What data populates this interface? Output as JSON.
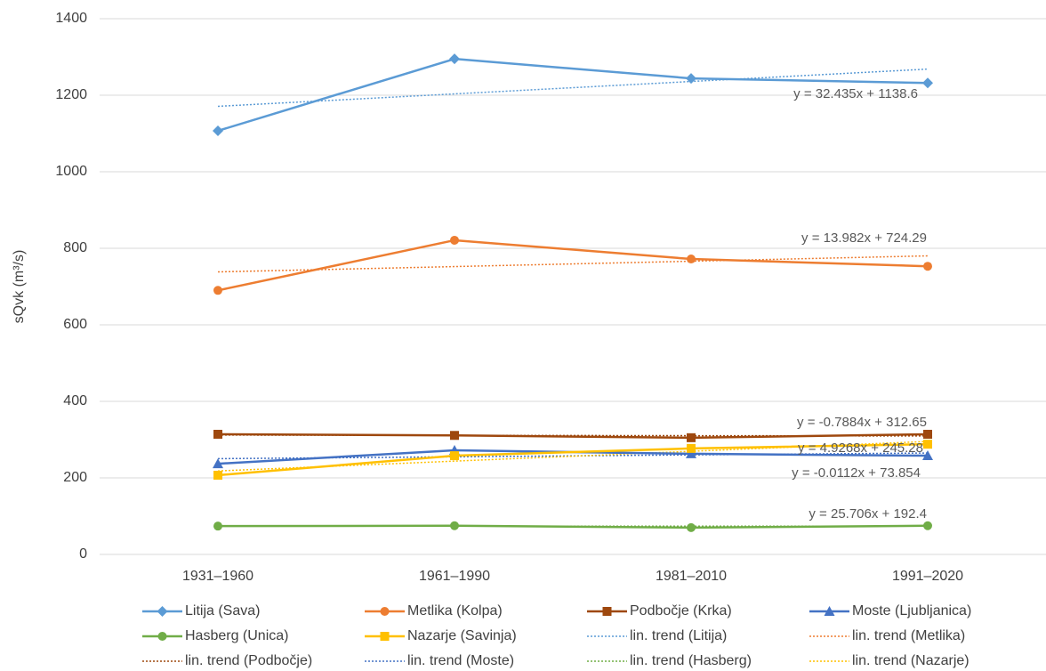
{
  "chart_data": {
    "type": "line",
    "y_label": "sQvk (m³/s)",
    "categories": [
      "1931–1960",
      "1961–1990",
      "1981–2010",
      "1991–2020"
    ],
    "ylim": [
      0,
      1400
    ],
    "yticks": [
      0,
      200,
      400,
      600,
      800,
      1000,
      1200,
      1400
    ],
    "grid": true,
    "series": [
      {
        "name": "Litija (Sava)",
        "color": "#5b9bd5",
        "marker": "diamond",
        "values": [
          1107,
          1295,
          1244,
          1232
        ]
      },
      {
        "name": "Metlika (Kolpa)",
        "color": "#ed7d31",
        "marker": "circle",
        "values": [
          690,
          821,
          772,
          753
        ]
      },
      {
        "name": "Podbočje (Krka)",
        "color": "#9e480e",
        "marker": "square",
        "values": [
          314,
          311,
          305,
          314
        ]
      },
      {
        "name": "Moste (Ljubljanica)",
        "color": "#4472c4",
        "marker": "triangle",
        "values": [
          237,
          272,
          263,
          258
        ]
      },
      {
        "name": "Hasberg (Unica)",
        "color": "#70ad47",
        "marker": "circle",
        "values": [
          74,
          75,
          70,
          75
        ]
      },
      {
        "name": "Nazarje (Savinja)",
        "color": "#ffc000",
        "marker": "square",
        "values": [
          207,
          258,
          277,
          288
        ]
      }
    ],
    "trendlines": [
      {
        "name": "lin. trend (Litija)",
        "color": "#5b9bd5",
        "equation": "y = 32.435x + 1138.6",
        "values": [
          1171.0,
          1203.5,
          1235.9,
          1268.3
        ]
      },
      {
        "name": "lin. trend (Metlika)",
        "color": "#ed7d31",
        "equation": "y = 13.982x + 724.29",
        "values": [
          738.3,
          752.2,
          766.2,
          780.2
        ]
      },
      {
        "name": "lin. trend (Podbočje)",
        "color": "#9e480e",
        "equation": "y = -0.7884x + 312.65",
        "values": [
          311.9,
          311.1,
          310.3,
          309.5
        ]
      },
      {
        "name": "lin. trend (Moste)",
        "color": "#4472c4",
        "equation": "y = 4.9268x + 245.28",
        "values": [
          250.2,
          255.1,
          260.1,
          265.0
        ]
      },
      {
        "name": "lin. trend (Hasberg)",
        "color": "#70ad47",
        "equation": "y = -0.0112x + 73.854",
        "values": [
          73.8,
          73.8,
          73.8,
          73.8
        ]
      },
      {
        "name": "lin. trend (Nazarje)",
        "color": "#ffc000",
        "equation": "y = 25.706x + 192.4",
        "values": [
          218.1,
          243.8,
          269.5,
          295.2
        ]
      }
    ]
  }
}
